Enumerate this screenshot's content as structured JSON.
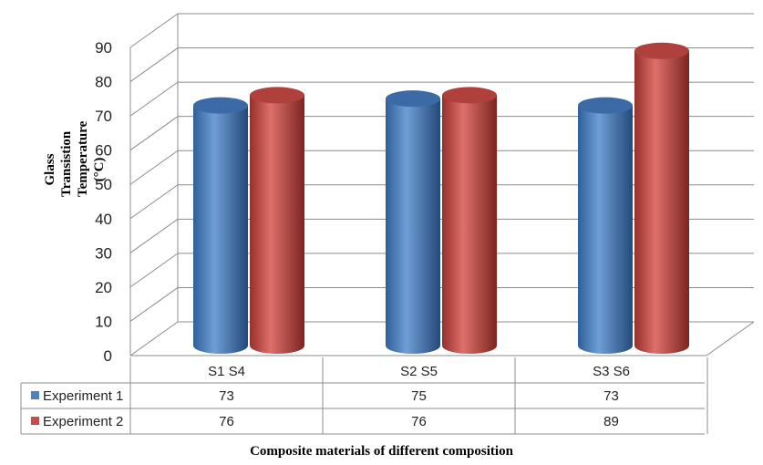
{
  "chart_data": {
    "type": "bar",
    "title": "",
    "xlabel": "Composite materials of different composition",
    "ylabel_lines": [
      "Glass Transistion",
      "Temperature (°C)"
    ],
    "ylim": [
      0,
      90
    ],
    "yticks": [
      "0",
      "10",
      "20",
      "30",
      "40",
      "50",
      "60",
      "70",
      "80",
      "90"
    ],
    "grid": true,
    "categories": [
      "S1    S4",
      "S2    S5",
      "S3    S6"
    ],
    "series": [
      {
        "name": "Experiment 1",
        "color": "#4F81BD",
        "values": [
          73,
          75,
          73
        ]
      },
      {
        "name": "Experiment 2",
        "color": "#C0504D",
        "values": [
          76,
          76,
          89
        ]
      }
    ],
    "data_table": true
  }
}
